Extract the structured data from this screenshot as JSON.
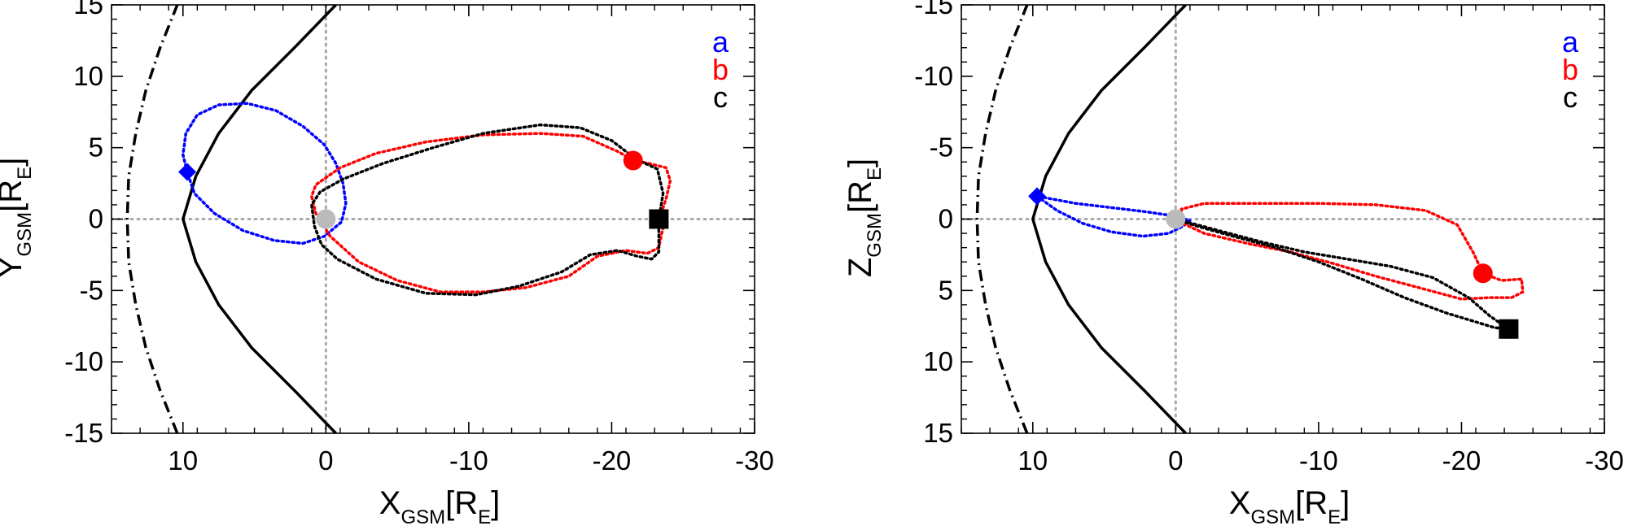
{
  "chart_data": [
    {
      "type": "line",
      "panel": "left",
      "xlabel": "X",
      "xlabel_sub": "GSM",
      "xlabel_unit": "[R",
      "xlabel_unit_sub": "E",
      "xlabel_close": "]",
      "ylabel": "Y",
      "ylabel_sub": "GSM",
      "ylabel_unit": "[R",
      "ylabel_unit_sub": "E",
      "ylabel_close": "]",
      "xlim": [
        15,
        -30
      ],
      "ylim": [
        15,
        -15
      ],
      "xticks": [
        10,
        0,
        -10,
        -20,
        -30
      ],
      "xtick_labels": [
        "10",
        "0",
        "-10",
        "-20",
        "-30"
      ],
      "yticks": [
        -15,
        -10,
        -5,
        0,
        5,
        10,
        15
      ],
      "ytick_labels": [
        "-15",
        "-10",
        "-5",
        "0",
        "5",
        "10",
        "15"
      ],
      "legend": [
        {
          "label": "a",
          "color": "#0000ff"
        },
        {
          "label": "b",
          "color": "#ff0000"
        },
        {
          "label": "c",
          "color": "#000000"
        }
      ],
      "legend_position": "top-right",
      "reference_lines": {
        "x": 0,
        "y": 0,
        "style": "dotted",
        "color": "#aaaaaa"
      },
      "boundaries": [
        {
          "name": "solid",
          "style": "solid",
          "color": "#000000",
          "points": [
            [
              -0.7,
              -15
            ],
            [
              2.2,
              -12
            ],
            [
              5.2,
              -9
            ],
            [
              7.5,
              -6
            ],
            [
              9.1,
              -3
            ],
            [
              10,
              0
            ],
            [
              9.1,
              3
            ],
            [
              7.5,
              6
            ],
            [
              5.2,
              9
            ],
            [
              2.2,
              12
            ],
            [
              -0.7,
              15
            ]
          ]
        },
        {
          "name": "dashdot",
          "style": "dashdot",
          "color": "#000000",
          "points": [
            [
              10.4,
              -15
            ],
            [
              11.6,
              -12
            ],
            [
              12.6,
              -9
            ],
            [
              13.3,
              -6
            ],
            [
              13.8,
              -3
            ],
            [
              13.9,
              0
            ],
            [
              13.8,
              3
            ],
            [
              13.3,
              6
            ],
            [
              12.6,
              9
            ],
            [
              11.6,
              12
            ],
            [
              10.4,
              15
            ]
          ]
        }
      ],
      "series": [
        {
          "name": "a",
          "color": "#0000ff",
          "style": "dotted",
          "points": [
            [
              9.7,
              3.3
            ],
            [
              10,
              4.5
            ],
            [
              9.8,
              6
            ],
            [
              9,
              7.3
            ],
            [
              7.5,
              8
            ],
            [
              5.5,
              8.1
            ],
            [
              3.5,
              7.6
            ],
            [
              1.6,
              6.5
            ],
            [
              0.1,
              5.2
            ],
            [
              -0.7,
              3.9
            ],
            [
              -1.2,
              2.5
            ],
            [
              -1.4,
              1.1
            ],
            [
              -1.1,
              -0.2
            ],
            [
              0.1,
              -1.2
            ],
            [
              1.6,
              -1.7
            ],
            [
              3.6,
              -1.5
            ],
            [
              5.8,
              -0.8
            ],
            [
              7.8,
              0.4
            ],
            [
              9.2,
              1.8
            ],
            [
              9.7,
              3.3
            ]
          ]
        },
        {
          "name": "b",
          "color": "#ff0000",
          "style": "dotted",
          "points": [
            [
              -21.5,
              4.1
            ],
            [
              -22.6,
              3.9
            ],
            [
              -23.8,
              3.6
            ],
            [
              -24.1,
              2.7
            ],
            [
              -23.8,
              1.4
            ],
            [
              -23.5,
              0.5
            ],
            [
              -23.7,
              -0.3
            ],
            [
              -23.5,
              -1
            ],
            [
              -23.3,
              -2
            ],
            [
              -22.5,
              -2.4
            ],
            [
              -21,
              -2.2
            ],
            [
              -19,
              -2.6
            ],
            [
              -17,
              -4
            ],
            [
              -14,
              -4.8
            ],
            [
              -11,
              -5.1
            ],
            [
              -8,
              -5.1
            ],
            [
              -5,
              -4.3
            ],
            [
              -2.3,
              -3
            ],
            [
              -0.3,
              -1.2
            ],
            [
              0.7,
              0.4
            ],
            [
              1,
              1.6
            ],
            [
              0.7,
              2.4
            ],
            [
              -1,
              3.6
            ],
            [
              -3.5,
              4.6
            ],
            [
              -7,
              5.4
            ],
            [
              -11,
              5.9
            ],
            [
              -15,
              6
            ],
            [
              -18,
              5.8
            ],
            [
              -20.5,
              4.7
            ],
            [
              -21.5,
              4.1
            ]
          ]
        },
        {
          "name": "c",
          "color": "#000000",
          "style": "dotted",
          "points": [
            [
              -23.3,
              0
            ],
            [
              -23.3,
              -2.3
            ],
            [
              -22.8,
              -2.8
            ],
            [
              -21.8,
              -2.6
            ],
            [
              -20.4,
              -2.2
            ],
            [
              -18.5,
              -2.5
            ],
            [
              -16.5,
              -3.7
            ],
            [
              -13.5,
              -4.7
            ],
            [
              -10.5,
              -5.3
            ],
            [
              -7,
              -5.2
            ],
            [
              -3.5,
              -4.2
            ],
            [
              -0.8,
              -2.8
            ],
            [
              0.3,
              -1.8
            ],
            [
              0.8,
              -0.5
            ],
            [
              1,
              1
            ],
            [
              0.4,
              1.9
            ],
            [
              -1.2,
              2.8
            ],
            [
              -4,
              3.9
            ],
            [
              -7.5,
              5
            ],
            [
              -11,
              6
            ],
            [
              -15,
              6.6
            ],
            [
              -17.8,
              6.4
            ],
            [
              -20,
              5.5
            ],
            [
              -21.7,
              4.2
            ],
            [
              -23.2,
              3.5
            ],
            [
              -23.6,
              1.8
            ],
            [
              -23.3,
              0
            ]
          ]
        }
      ],
      "markers": [
        {
          "name": "earth",
          "shape": "circle",
          "color": "#bbbbbb",
          "x": 0,
          "y": 0
        },
        {
          "name": "a-start",
          "shape": "diamond",
          "color": "#0000ff",
          "x": 9.7,
          "y": 3.3
        },
        {
          "name": "b-start",
          "shape": "circle",
          "color": "#ff0000",
          "x": -21.5,
          "y": 4.1
        },
        {
          "name": "c-start",
          "shape": "square",
          "color": "#000000",
          "x": -23.3,
          "y": 0
        }
      ]
    },
    {
      "type": "line",
      "panel": "right",
      "xlabel": "X",
      "xlabel_sub": "GSM",
      "xlabel_unit": "[R",
      "xlabel_unit_sub": "E",
      "xlabel_close": "]",
      "ylabel": "Z",
      "ylabel_sub": "GSM",
      "ylabel_unit": "[R",
      "ylabel_unit_sub": "E",
      "ylabel_close": "]",
      "xlim": [
        15,
        -30
      ],
      "ylim": [
        -15,
        15
      ],
      "xticks": [
        10,
        0,
        -10,
        -20,
        -30
      ],
      "xtick_labels": [
        "10",
        "0",
        "-10",
        "-20",
        "-30"
      ],
      "yticks": [
        15,
        10,
        5,
        0,
        -5,
        -10,
        -15
      ],
      "ytick_labels": [
        "15",
        "10",
        "5",
        "0",
        "-5",
        "-10",
        "-15"
      ],
      "legend": [
        {
          "label": "a",
          "color": "#0000ff"
        },
        {
          "label": "b",
          "color": "#ff0000"
        },
        {
          "label": "c",
          "color": "#000000"
        }
      ],
      "legend_position": "top-right",
      "reference_lines": {
        "x": 0,
        "y": 0,
        "style": "dotted",
        "color": "#aaaaaa"
      },
      "boundaries": [
        {
          "name": "solid",
          "style": "solid",
          "color": "#000000",
          "points": [
            [
              -0.7,
              15
            ],
            [
              2.2,
              12
            ],
            [
              5.2,
              9
            ],
            [
              7.5,
              6
            ],
            [
              9.1,
              3
            ],
            [
              10,
              0
            ],
            [
              9.1,
              -3
            ],
            [
              7.5,
              -6
            ],
            [
              5.2,
              -9
            ],
            [
              2.2,
              -12
            ],
            [
              -0.7,
              -15
            ]
          ]
        },
        {
          "name": "dashdot",
          "style": "dashdot",
          "color": "#000000",
          "points": [
            [
              10.4,
              15
            ],
            [
              11.6,
              12
            ],
            [
              12.6,
              9
            ],
            [
              13.3,
              6
            ],
            [
              13.8,
              3
            ],
            [
              13.9,
              0
            ],
            [
              13.8,
              -3
            ],
            [
              13.3,
              -6
            ],
            [
              12.6,
              -9
            ],
            [
              11.6,
              -12
            ],
            [
              10.4,
              -15
            ]
          ]
        }
      ],
      "series": [
        {
          "name": "a",
          "color": "#0000ff",
          "style": "dotted",
          "points": [
            [
              9.7,
              -1.6
            ],
            [
              8.3,
              -0.6
            ],
            [
              6.5,
              0.3
            ],
            [
              4.5,
              0.9
            ],
            [
              2.3,
              1.2
            ],
            [
              0.5,
              1
            ],
            [
              -0.5,
              0.5
            ],
            [
              -1,
              0.1
            ],
            [
              0,
              -0.2
            ],
            [
              2,
              -0.5
            ],
            [
              4.5,
              -0.8
            ],
            [
              7,
              -1.1
            ],
            [
              9.7,
              -1.6
            ]
          ]
        },
        {
          "name": "b",
          "color": "#ff0000",
          "style": "dotted",
          "points": [
            [
              -21.5,
              3.8
            ],
            [
              -22.8,
              4.3
            ],
            [
              -24.2,
              4.2
            ],
            [
              -24.3,
              5.1
            ],
            [
              -23.5,
              5.5
            ],
            [
              -22,
              5.5
            ],
            [
              -20,
              5.6
            ],
            [
              -17,
              4.8
            ],
            [
              -14,
              4
            ],
            [
              -11,
              3.1
            ],
            [
              -8,
              2.3
            ],
            [
              -5,
              1.7
            ],
            [
              -2,
              1
            ],
            [
              -0.5,
              0.3
            ],
            [
              -0.4,
              -0.7
            ],
            [
              -2,
              -1.1
            ],
            [
              -6,
              -1.1
            ],
            [
              -10,
              -1.1
            ],
            [
              -14,
              -1
            ],
            [
              -17.5,
              -0.6
            ],
            [
              -19.7,
              0.4
            ],
            [
              -20.8,
              2.3
            ],
            [
              -21.5,
              3.8
            ]
          ]
        },
        {
          "name": "c",
          "color": "#000000",
          "style": "dotted",
          "points": [
            [
              -23.3,
              7.7
            ],
            [
              -22.3,
              7.6
            ],
            [
              -21,
              7.2
            ],
            [
              -19,
              6.6
            ],
            [
              -16,
              5.5
            ],
            [
              -13,
              4.2
            ],
            [
              -10,
              3
            ],
            [
              -7,
              2
            ],
            [
              -4,
              1.2
            ],
            [
              -1.5,
              0.5
            ],
            [
              0,
              0
            ],
            [
              -3,
              0.8
            ],
            [
              -6,
              1.6
            ],
            [
              -9,
              2.3
            ],
            [
              -12,
              2.8
            ],
            [
              -15,
              3.3
            ],
            [
              -18,
              4.1
            ],
            [
              -20.5,
              5.5
            ],
            [
              -22,
              6.8
            ],
            [
              -23.3,
              7.7
            ]
          ]
        }
      ],
      "markers": [
        {
          "name": "earth",
          "shape": "circle",
          "color": "#bbbbbb",
          "x": 0,
          "y": 0
        },
        {
          "name": "a-start",
          "shape": "diamond",
          "color": "#0000ff",
          "x": 9.7,
          "y": -1.6
        },
        {
          "name": "b-start",
          "shape": "circle",
          "color": "#ff0000",
          "x": -21.5,
          "y": 3.8
        },
        {
          "name": "c-start",
          "shape": "square",
          "color": "#000000",
          "x": -23.3,
          "y": 7.7
        }
      ]
    }
  ]
}
